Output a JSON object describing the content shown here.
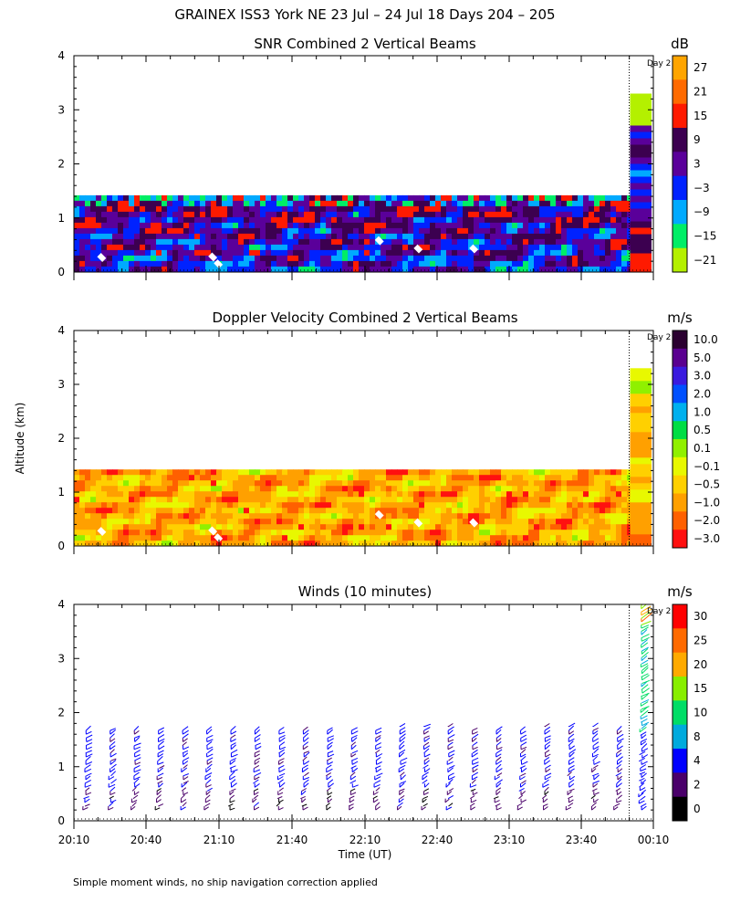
{
  "figure": {
    "title": "GRAINEX ISS3 York NE  23 Jul – 24 Jul 18 Days 204 – 205",
    "ylabel": "Altitude (km)",
    "xlabel": "Time (UT)",
    "footnote": "Simple moment winds, no ship navigation correction applied",
    "day_marker": "Day 2"
  },
  "chart_data": [
    {
      "type": "heatmap",
      "title": "SNR Combined 2 Vertical Beams",
      "ylim": [
        0,
        4
      ],
      "yticks": [
        "0",
        "1",
        "2",
        "3",
        "4"
      ],
      "x_time_range": [
        "20:10",
        "00:10"
      ],
      "day_boundary_time": "00:00",
      "colorbar_unit": "dB",
      "colorbar_labels": [
        "27",
        "21",
        "15",
        "9",
        "3",
        "−3",
        "−9",
        "−15",
        "−21"
      ],
      "colorbar_colors": [
        "#ffa500",
        "#ff6a00",
        "#ff1a00",
        "#3c0050",
        "#5a009a",
        "#0022ff",
        "#00aaff",
        "#00ee66",
        "#b4f000"
      ]
    },
    {
      "type": "heatmap",
      "title": "Doppler Velocity Combined 2 Vertical Beams",
      "ylim": [
        0,
        4
      ],
      "yticks": [
        "0",
        "1",
        "2",
        "3",
        "4"
      ],
      "x_time_range": [
        "20:10",
        "00:10"
      ],
      "day_boundary_time": "00:00",
      "colorbar_unit": "m/s",
      "colorbar_labels": [
        "10.0",
        "5.0",
        "3.0",
        "2.0",
        "1.0",
        "0.5",
        "0.1",
        "−0.1",
        "−0.5",
        "−1.0",
        "−2.0",
        "−3.0"
      ],
      "colorbar_colors": [
        "#2a0030",
        "#5a0090",
        "#3a1adf",
        "#0050ff",
        "#00b0ee",
        "#00dd44",
        "#90f000",
        "#e8f800",
        "#ffd000",
        "#ffa000",
        "#ff6000",
        "#ff1010"
      ]
    },
    {
      "type": "scatter",
      "title": "Winds (10 minutes)",
      "ylim": [
        0,
        4
      ],
      "yticks": [
        "0",
        "1",
        "2",
        "3",
        "4"
      ],
      "xticks": [
        "20:10",
        "20:40",
        "21:10",
        "21:40",
        "22:10",
        "22:40",
        "23:10",
        "23:40",
        "00:10"
      ],
      "day_boundary_time": "00:00",
      "colorbar_unit": "m/s",
      "colorbar_labels": [
        "30",
        "25",
        "20",
        "15",
        "10",
        "8",
        "4",
        "2",
        "0"
      ],
      "colorbar_colors": [
        "#ff0000",
        "#ff6a00",
        "#ffaa00",
        "#88ee00",
        "#00dd66",
        "#00aadd",
        "#0000ff",
        "#4a006a",
        "#000000"
      ],
      "profile_times": [
        "20:15",
        "20:25",
        "20:35",
        "20:45",
        "20:55",
        "21:05",
        "21:15",
        "21:25",
        "21:35",
        "21:45",
        "21:55",
        "22:05",
        "22:15",
        "22:25",
        "22:35",
        "22:45",
        "22:55",
        "23:05",
        "23:15",
        "23:25",
        "23:35",
        "23:45",
        "23:55",
        "00:05"
      ],
      "profile_top_km": [
        1.7,
        1.7,
        1.7,
        1.7,
        1.7,
        1.7,
        1.7,
        1.7,
        1.7,
        1.7,
        1.7,
        1.7,
        1.7,
        1.75,
        1.75,
        1.75,
        1.7,
        1.7,
        1.7,
        1.75,
        1.75,
        1.75,
        1.7,
        4.0
      ]
    }
  ]
}
